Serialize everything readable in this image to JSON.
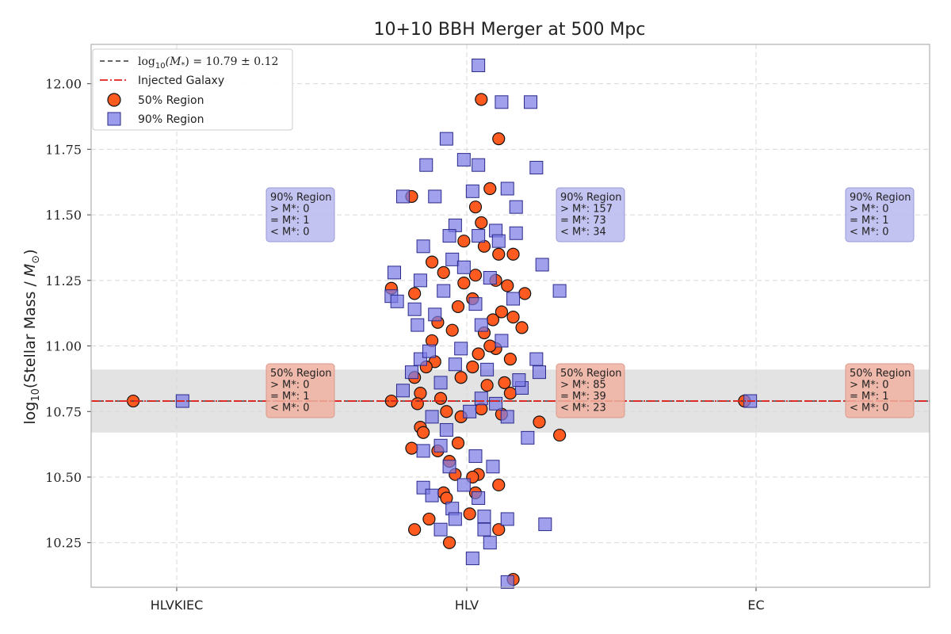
{
  "chart_data": {
    "type": "scatter",
    "title": "10+10 BBH Merger at 500 Mpc",
    "xlabel": "",
    "ylabel_main": "Stellar Mass / ",
    "ylabel_prefix": "log",
    "ylabel_sub": "10",
    "ylabel_unit": "M",
    "ylabel_unit_sub": "⊙",
    "categories": [
      "HLVKIEC",
      "HLV",
      "EC"
    ],
    "ylim": [
      10.08,
      12.15
    ],
    "yticks": [
      "10.25",
      "10.50",
      "10.75",
      "11.00",
      "11.25",
      "11.50",
      "11.75",
      "12.00"
    ],
    "grid": true,
    "legend_position": "top-left",
    "injected_value": 10.79,
    "estimate": {
      "value": 10.79,
      "sigma": 0.12
    },
    "legend": {
      "estimate_prefix": "log",
      "estimate_sub": "10",
      "estimate_expr": "(M",
      "estimate_star": "*",
      "estimate_rest": ") = 10.79 ± 0.12",
      "injected": "Injected Galaxy",
      "region50": "50% Region",
      "region90": "90% Region"
    },
    "series": [
      {
        "name": "50% Region",
        "marker": "circle",
        "groups": [
          {
            "category": "HLVKIEC",
            "points": [
              [
                -0.15,
                10.79
              ]
            ]
          },
          {
            "category": "EC",
            "points": [
              [
                -0.04,
                10.79
              ]
            ]
          },
          {
            "category": "HLV",
            "points": [
              [
                0.05,
                11.94
              ],
              [
                0.11,
                11.79
              ],
              [
                0.08,
                11.6
              ],
              [
                -0.19,
                11.57
              ],
              [
                0.03,
                11.53
              ],
              [
                0.05,
                11.47
              ],
              [
                -0.01,
                11.4
              ],
              [
                0.06,
                11.38
              ],
              [
                0.11,
                11.35
              ],
              [
                0.16,
                11.35
              ],
              [
                -0.08,
                11.28
              ],
              [
                -0.26,
                11.22
              ],
              [
                -0.18,
                11.2
              ],
              [
                0.2,
                11.2
              ],
              [
                0.14,
                11.23
              ],
              [
                0.03,
                11.27
              ],
              [
                -0.03,
                11.15
              ],
              [
                0.12,
                11.13
              ],
              [
                0.16,
                11.11
              ],
              [
                -0.1,
                11.09
              ],
              [
                0.19,
                11.07
              ],
              [
                0.06,
                11.05
              ],
              [
                -0.12,
                11.02
              ],
              [
                0.1,
                10.99
              ],
              [
                0.15,
                10.95
              ],
              [
                -0.11,
                10.94
              ],
              [
                0.02,
                10.92
              ],
              [
                -0.18,
                10.88
              ],
              [
                0.07,
                10.85
              ],
              [
                0.15,
                10.82
              ],
              [
                -0.16,
                10.82
              ],
              [
                -0.26,
                10.79
              ],
              [
                -0.17,
                10.78
              ],
              [
                0.05,
                10.76
              ],
              [
                -0.02,
                10.73
              ],
              [
                0.25,
                10.71
              ],
              [
                0.32,
                10.66
              ],
              [
                -0.16,
                10.69
              ],
              [
                -0.15,
                10.67
              ],
              [
                -0.03,
                10.63
              ],
              [
                -0.19,
                10.61
              ],
              [
                -0.1,
                10.6
              ],
              [
                -0.06,
                10.56
              ],
              [
                -0.04,
                10.51
              ],
              [
                0.04,
                10.51
              ],
              [
                0.02,
                10.5
              ],
              [
                0.11,
                10.47
              ],
              [
                -0.08,
                10.44
              ],
              [
                0.03,
                10.44
              ],
              [
                -0.07,
                10.42
              ],
              [
                0.01,
                10.36
              ],
              [
                -0.13,
                10.34
              ],
              [
                0.11,
                10.3
              ],
              [
                -0.18,
                10.3
              ],
              [
                -0.06,
                10.25
              ],
              [
                0.16,
                10.11
              ],
              [
                -0.02,
                10.88
              ],
              [
                0.12,
                10.74
              ],
              [
                -0.09,
                10.8
              ],
              [
                0.08,
                11.0
              ],
              [
                -0.05,
                11.06
              ],
              [
                0.02,
                11.18
              ],
              [
                0.1,
                11.25
              ],
              [
                -0.12,
                11.32
              ],
              [
                0.13,
                10.86
              ],
              [
                -0.14,
                10.92
              ],
              [
                0.04,
                10.97
              ],
              [
                -0.07,
                10.75
              ],
              [
                0.09,
                11.1
              ],
              [
                -0.01,
                11.24
              ]
            ]
          }
        ]
      },
      {
        "name": "90% Region",
        "marker": "square",
        "groups": [
          {
            "category": "HLVKIEC",
            "points": [
              [
                0.02,
                10.79
              ]
            ]
          },
          {
            "category": "EC",
            "points": [
              [
                -0.02,
                10.79
              ]
            ]
          },
          {
            "category": "HLV",
            "points": [
              [
                0.04,
                12.07
              ],
              [
                0.12,
                11.93
              ],
              [
                0.22,
                11.93
              ],
              [
                -0.07,
                11.79
              ],
              [
                -0.14,
                11.69
              ],
              [
                -0.01,
                11.71
              ],
              [
                0.04,
                11.69
              ],
              [
                0.24,
                11.68
              ],
              [
                -0.22,
                11.57
              ],
              [
                -0.11,
                11.57
              ],
              [
                0.02,
                11.59
              ],
              [
                0.14,
                11.6
              ],
              [
                0.17,
                11.53
              ],
              [
                0.1,
                11.44
              ],
              [
                0.17,
                11.43
              ],
              [
                -0.04,
                11.46
              ],
              [
                0.26,
                11.31
              ],
              [
                0.32,
                11.21
              ],
              [
                -0.25,
                11.28
              ],
              [
                -0.16,
                11.25
              ],
              [
                -0.26,
                11.19
              ],
              [
                -0.24,
                11.17
              ],
              [
                -0.18,
                11.14
              ],
              [
                -0.05,
                11.33
              ],
              [
                0.04,
                11.42
              ],
              [
                -0.17,
                11.08
              ],
              [
                -0.16,
                10.95
              ],
              [
                0.24,
                10.95
              ],
              [
                0.25,
                10.9
              ],
              [
                0.19,
                10.84
              ],
              [
                -0.22,
                10.83
              ],
              [
                0.05,
                10.8
              ],
              [
                -0.12,
                10.73
              ],
              [
                -0.07,
                10.68
              ],
              [
                0.14,
                10.73
              ],
              [
                0.21,
                10.65
              ],
              [
                -0.09,
                10.62
              ],
              [
                -0.15,
                10.6
              ],
              [
                0.03,
                10.58
              ],
              [
                -0.06,
                10.54
              ],
              [
                0.09,
                10.54
              ],
              [
                -0.01,
                10.47
              ],
              [
                -0.15,
                10.46
              ],
              [
                -0.12,
                10.43
              ],
              [
                0.04,
                10.42
              ],
              [
                -0.05,
                10.38
              ],
              [
                0.06,
                10.35
              ],
              [
                -0.04,
                10.34
              ],
              [
                0.14,
                10.34
              ],
              [
                0.27,
                10.32
              ],
              [
                -0.09,
                10.3
              ],
              [
                0.06,
                10.3
              ],
              [
                0.08,
                10.25
              ],
              [
                0.02,
                10.19
              ],
              [
                0.14,
                10.1
              ],
              [
                -0.15,
                11.38
              ],
              [
                -0.06,
                11.42
              ],
              [
                0.08,
                11.26
              ],
              [
                -0.11,
                11.12
              ],
              [
                0.03,
                11.16
              ],
              [
                0.12,
                11.02
              ],
              [
                -0.02,
                10.99
              ],
              [
                0.07,
                10.91
              ],
              [
                -0.09,
                10.86
              ],
              [
                0.01,
                10.75
              ],
              [
                0.1,
                10.78
              ],
              [
                -0.04,
                10.93
              ],
              [
                0.16,
                11.18
              ],
              [
                -0.13,
                10.98
              ],
              [
                0.05,
                11.08
              ],
              [
                -0.01,
                11.3
              ],
              [
                0.11,
                11.4
              ],
              [
                -0.08,
                11.21
              ],
              [
                0.18,
                10.87
              ],
              [
                -0.19,
                10.9
              ]
            ]
          }
        ]
      }
    ],
    "annotations": [
      {
        "category": "HLVKIEC",
        "region": "90% Region",
        "lines": [
          "90% Region",
          "> M*: 0",
          "= M*: 1",
          "< M*: 0"
        ]
      },
      {
        "category": "HLV",
        "region": "90% Region",
        "lines": [
          "90% Region",
          "> M*: 157",
          "= M*: 73",
          "< M*: 34"
        ]
      },
      {
        "category": "EC",
        "region": "90% Region",
        "lines": [
          "90% Region",
          "> M*: 0",
          "= M*: 1",
          "< M*: 0"
        ]
      },
      {
        "category": "HLVKIEC",
        "region": "50% Region",
        "lines": [
          "50% Region",
          "> M*: 0",
          "= M*: 1",
          "< M*: 0"
        ]
      },
      {
        "category": "HLV",
        "region": "50% Region",
        "lines": [
          "50% Region",
          "> M*: 85",
          "= M*: 39",
          "< M*: 23"
        ]
      },
      {
        "category": "EC",
        "region": "50% Region",
        "lines": [
          "50% Region",
          "> M*: 0",
          "= M*: 1",
          "< M*: 0"
        ]
      }
    ],
    "colors": {
      "circle_fill": "#ff5a1f",
      "circle_edge": "#111111",
      "square_fill": "#7b7be6",
      "square_edge": "#2a2a8a",
      "injected_line": "#e0201a",
      "band": "#d9d9d9",
      "box90": "#b8b8f0",
      "box50": "#f0b0a0"
    }
  }
}
